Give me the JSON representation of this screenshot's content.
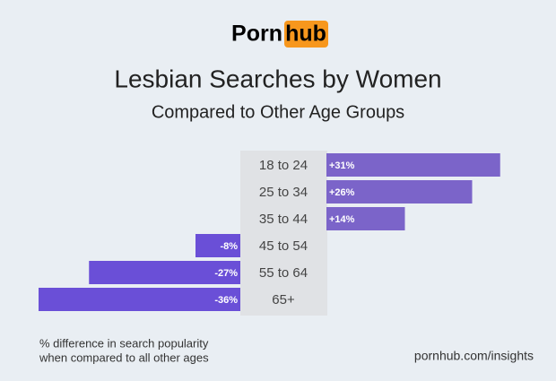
{
  "logo": {
    "left": "Porn",
    "right": "hub"
  },
  "chart_data": {
    "type": "bar",
    "orientation": "horizontal",
    "title": "Lesbian Searches by Women",
    "subtitle": "Compared to Other Age Groups",
    "categories": [
      "18 to 24",
      "25 to 34",
      "35 to 44",
      "45 to 54",
      "55 to 64",
      "65+"
    ],
    "values": [
      31,
      26,
      14,
      -8,
      -27,
      -36
    ],
    "value_labels": [
      "+31%",
      "+26%",
      "+14%",
      "-8%",
      "-27%",
      "-36%"
    ],
    "positive_color": "#7b64c9",
    "negative_color": "#6a4fd7",
    "footnote": [
      "% difference in search popularity",
      "when compared to all other ages"
    ],
    "source": "pornhub.com/insights"
  }
}
